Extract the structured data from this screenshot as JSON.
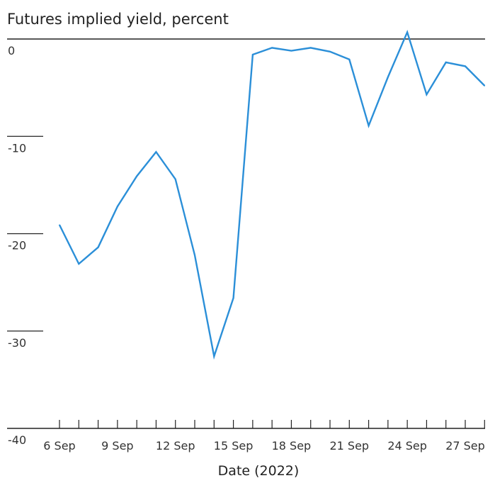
{
  "chart_data": {
    "type": "line",
    "title": "Futures implied yield, percent",
    "xlabel": "Date (2022)",
    "ylabel": "",
    "ylim": [
      -40,
      0
    ],
    "yticks": [
      0,
      -10,
      -20,
      -30,
      -40
    ],
    "ytick_labels": [
      "0",
      "-10",
      "-20",
      "-30",
      "-40"
    ],
    "xticks": [
      6,
      9,
      12,
      15,
      18,
      21,
      24,
      27
    ],
    "xtick_labels": [
      "6 Sep",
      "9 Sep",
      "12 Sep",
      "15 Sep",
      "18 Sep",
      "21 Sep",
      "24 Sep",
      "27 Sep"
    ],
    "xlim": [
      5,
      28
    ],
    "grid": false,
    "legend": "none",
    "series": [
      {
        "color": "#2b8fd8",
        "x": [
          6,
          7,
          8,
          9,
          10,
          11,
          12,
          13,
          14,
          15,
          16,
          17,
          18,
          19,
          20,
          21,
          22,
          23,
          24,
          25,
          26,
          27,
          28
        ],
        "values": [
          -19.1,
          -23.1,
          -21.4,
          -17.2,
          -14.1,
          -11.6,
          -14.4,
          -22.2,
          -32.6,
          -26.6,
          -1.6,
          -0.9,
          -1.2,
          -0.9,
          -1.3,
          -2.1,
          -8.9,
          -3.9,
          0.7,
          -5.7,
          -2.4,
          -2.8,
          -4.8
        ]
      }
    ]
  }
}
